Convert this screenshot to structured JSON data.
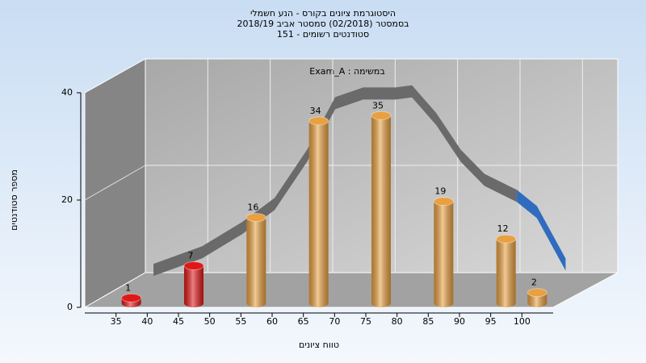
{
  "chart_data": {
    "type": "bar3d",
    "title_lines": [
      "היסטוגרמת ציונים בקורס - הנע חשמלי",
      "בסמסטר (02/2018)  סמסטר אביב 2018/19",
      "סטודנטים רשומים - 151"
    ],
    "annotation": "במשימה : Exam_A",
    "xlabel": "טווח ציונים",
    "ylabel": "מספר סטודנטים",
    "x": [
      35,
      45,
      55,
      65,
      75,
      85,
      95,
      100
    ],
    "values": [
      1,
      7,
      16,
      34,
      35,
      19,
      12,
      2
    ],
    "colors": [
      "#e01818",
      "#e01818",
      "#e8a040",
      "#e8a040",
      "#e8a040",
      "#e8a040",
      "#e8a040",
      "#e8a040"
    ],
    "xlim": [
      30,
      105
    ],
    "xticks": [
      35,
      40,
      45,
      50,
      55,
      60,
      65,
      70,
      75,
      80,
      85,
      90,
      95,
      100
    ],
    "xgrid": [
      40,
      50,
      60,
      70,
      80,
      90,
      100
    ],
    "ylim": [
      0,
      40
    ],
    "yticks": [
      0,
      20,
      40
    ],
    "curves": [
      {
        "color": "#6a6a6a",
        "x": [
          31.3,
          39.1,
          45.5,
          50.7,
          55.9,
          60.4,
          64.9,
          70.1,
          72.7,
          76.6,
          80.5,
          84.3,
          89.5
        ],
        "values": [
          0.5,
          3.8,
          8.3,
          12.8,
          21.8,
          31.6,
          33.4,
          33.4,
          33.8,
          28.6,
          21.8,
          17.3,
          14.3
        ]
      },
      {
        "color": "#2f6cc0",
        "x": [
          89.5,
          92.7,
          97.3
        ],
        "values": [
          14.3,
          11.3,
          1.5
        ]
      }
    ]
  }
}
